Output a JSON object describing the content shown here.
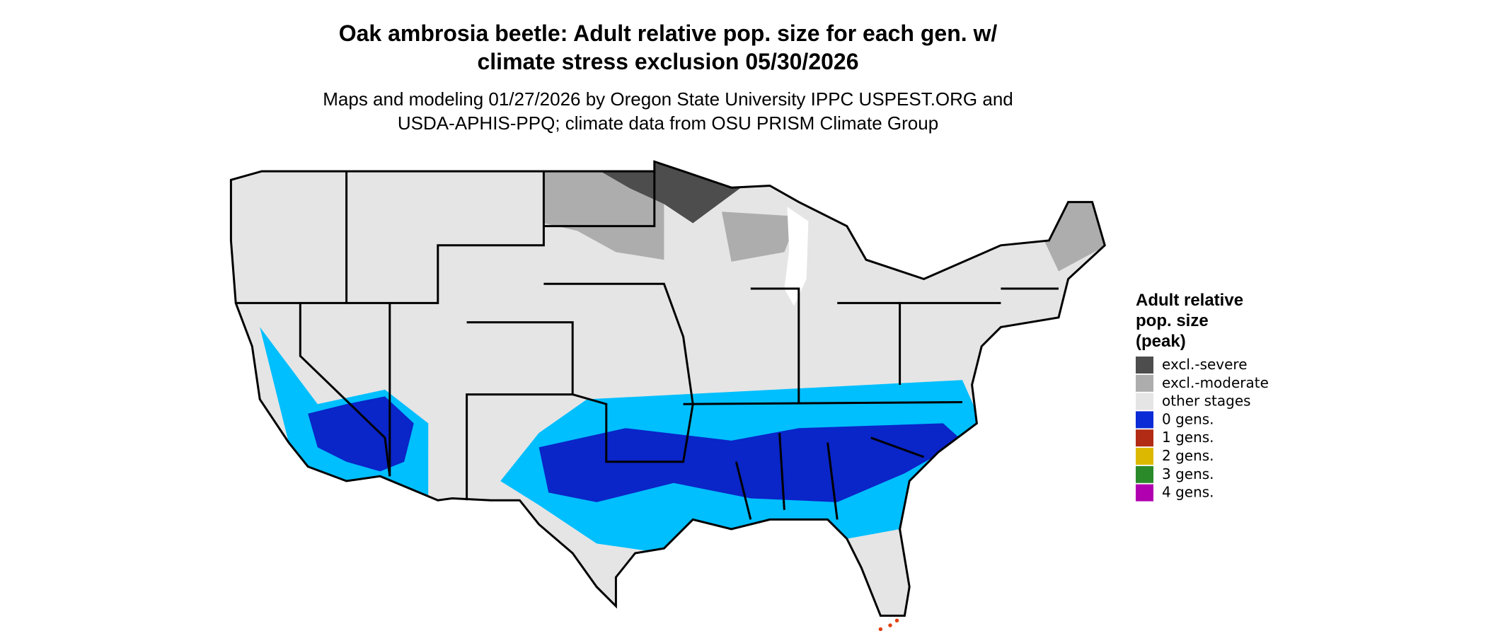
{
  "header": {
    "title_lines": [
      "Oak ambrosia beetle: Adult relative pop. size for each gen. w/",
      "climate stress exclusion 05/30/2026"
    ],
    "subtitle_lines": [
      "Maps and modeling 01/27/2026 by Oregon State University IPPC USPEST.ORG and",
      "USDA-APHIS-PPQ; climate data from OSU PRISM Climate Group"
    ]
  },
  "legend": {
    "title_lines": [
      "Adult relative",
      "pop. size",
      "(peak)"
    ],
    "items": [
      {
        "label": "excl.-severe",
        "color": "#4d4d4d"
      },
      {
        "label": "excl.-moderate",
        "color": "#adadad"
      },
      {
        "label": "other stages",
        "color": "#e5e5e5"
      },
      {
        "label": "0 gens.",
        "color": "#0b2bd6"
      },
      {
        "label": "1 gens.",
        "color": "#b22b15"
      },
      {
        "label": "2 gens.",
        "color": "#ddb800"
      },
      {
        "label": "3 gens.",
        "color": "#2a8a2a"
      },
      {
        "label": "4 gens.",
        "color": "#b000b0"
      }
    ]
  }
}
